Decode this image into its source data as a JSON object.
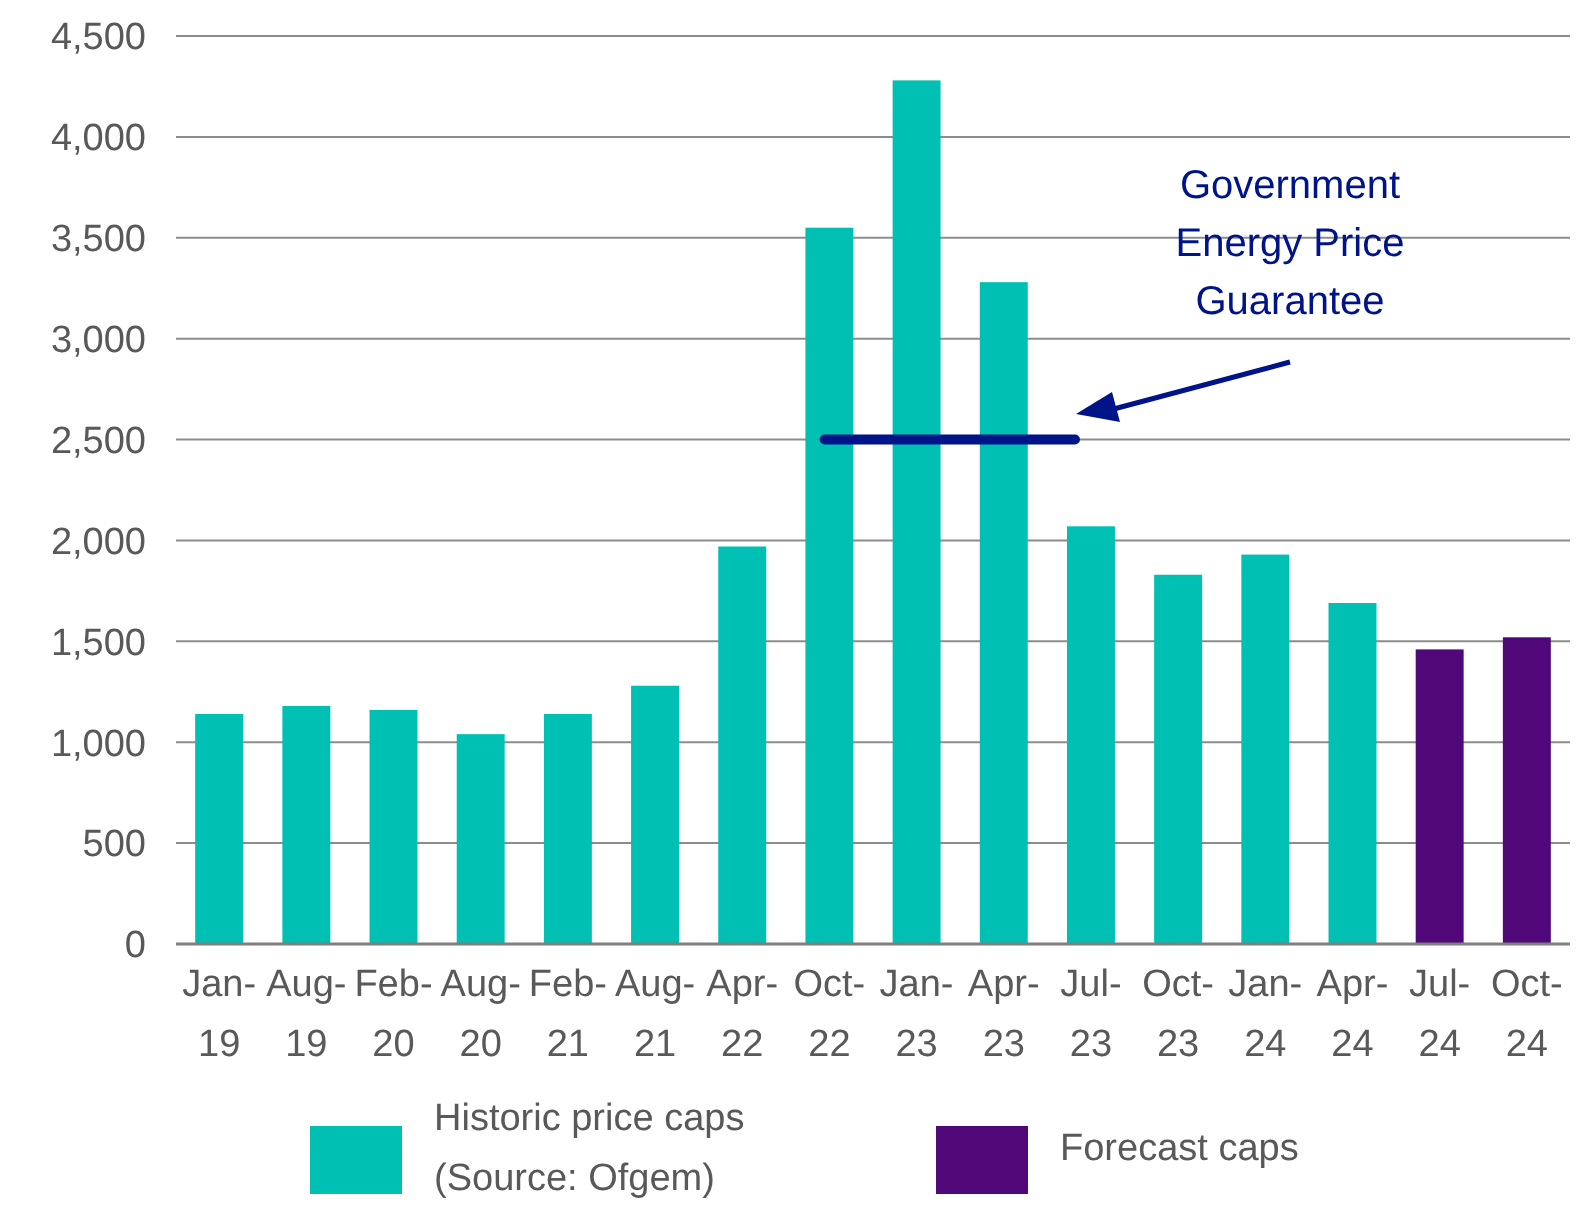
{
  "chart_data": {
    "type": "bar",
    "categories": [
      "Jan-19",
      "Aug-19",
      "Feb-20",
      "Aug-20",
      "Feb-21",
      "Aug-21",
      "Apr-22",
      "Oct-22",
      "Jan-23",
      "Apr-23",
      "Jul-23",
      "Oct-23",
      "Jan-24",
      "Apr-24",
      "Jul-24",
      "Oct-24"
    ],
    "series": [
      {
        "name": "Historic price caps (Source: Ofgem)",
        "color": "#00bfb3",
        "values": [
          1140,
          1180,
          1160,
          1040,
          1140,
          1280,
          1970,
          3550,
          4280,
          3280,
          2070,
          1830,
          1930,
          1690,
          null,
          null
        ]
      },
      {
        "name": "Forecast caps",
        "color": "#500778",
        "values": [
          null,
          null,
          null,
          null,
          null,
          null,
          null,
          null,
          null,
          null,
          null,
          null,
          null,
          null,
          1460,
          1520
        ]
      }
    ],
    "ylim": [
      0,
      4500
    ],
    "yticks": [
      0,
      {
        "value": 500,
        "label": "500"
      },
      {
        "value": 1000,
        "label": "1,000"
      },
      {
        "value": 1500,
        "label": "1,500"
      },
      {
        "value": 2000,
        "label": "2,000"
      },
      {
        "value": 2500,
        "label": "2,500"
      },
      {
        "value": 3000,
        "label": "3,000"
      },
      {
        "value": 3500,
        "label": "3,500"
      },
      {
        "value": 4000,
        "label": "4,000"
      },
      {
        "value": 4500,
        "label": "4,500"
      }
    ],
    "grid": "y",
    "legend": "bottom",
    "ref_lines": [
      {
        "axis": "y",
        "value": 2500,
        "label": "Government Energy Price Guarantee",
        "color": "#001489"
      }
    ]
  }
}
